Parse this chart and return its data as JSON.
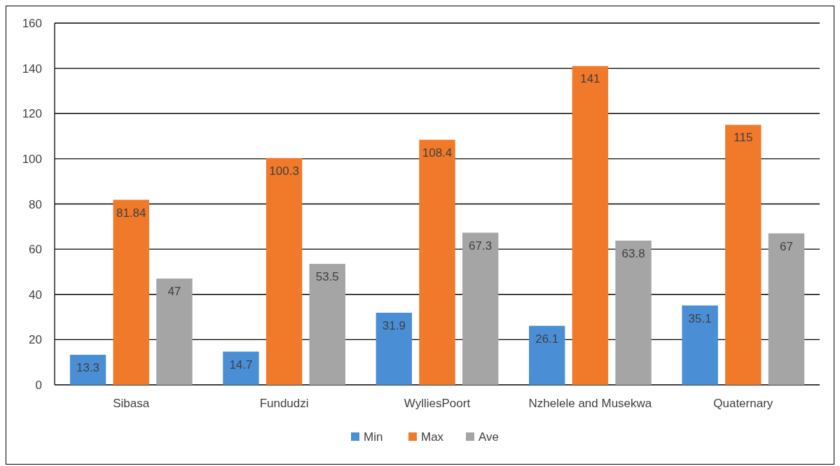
{
  "chart_data": {
    "type": "bar",
    "categories": [
      "Sibasa",
      "Fundudzi",
      "WylliesPoort",
      "Nzhelele and Musekwa",
      "Quaternary"
    ],
    "series": [
      {
        "name": "Min",
        "color": "#4a8fd6",
        "values": [
          13.3,
          14.7,
          31.9,
          26.1,
          35.1
        ]
      },
      {
        "name": "Max",
        "color": "#f0792a",
        "values": [
          81.84,
          100.3,
          108.4,
          141,
          115
        ]
      },
      {
        "name": "Ave",
        "color": "#a5a5a5",
        "values": [
          47,
          53.5,
          67.3,
          63.8,
          67
        ]
      }
    ],
    "ylim": [
      0,
      160
    ],
    "yticks": [
      0,
      20,
      40,
      60,
      80,
      100,
      120,
      140,
      160
    ],
    "grid": "y",
    "legend": "bottom",
    "data_labels": true
  }
}
